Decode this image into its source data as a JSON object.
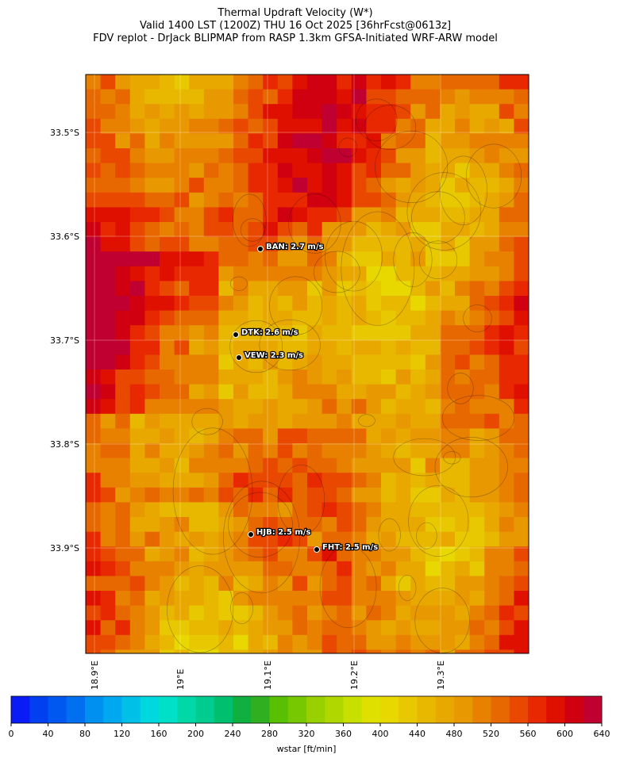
{
  "header": {
    "title": "Thermal Updraft Velocity (W*)",
    "subtitle": "Valid 1400 LST (1200Z) THU 16 Oct 2025 [36hrFcst@0613z]",
    "source": "FDV replot - DrJack BLIPMAP from RASP 1.3km GFSA-Initiated WRF-ARW model"
  },
  "map": {
    "lat_labels": [
      "33.5°S",
      "33.6°S",
      "33.7°S",
      "33.8°S",
      "33.9°S"
    ],
    "lon_labels": [
      "18.9°E",
      "19°E",
      "19.1°E",
      "19.2°E",
      "19.3°E"
    ],
    "stations": [
      {
        "label": "BAN: 2.7 m/s"
      },
      {
        "label": "DTK: 2.6 m/s"
      },
      {
        "label": "VEW: 2.3 m/s"
      },
      {
        "label": "HJB: 2.5 m/s"
      },
      {
        "label": "FHT: 2.5 m/s"
      }
    ]
  },
  "colorbar": {
    "label": "wstar [ft/min]",
    "lim": [
      0,
      640
    ],
    "ticks": [
      0,
      40,
      80,
      120,
      160,
      200,
      240,
      280,
      320,
      360,
      400,
      440,
      480,
      520,
      560,
      600,
      640
    ],
    "colors": [
      "#0a1cf5",
      "#0040f0",
      "#0058f0",
      "#0070f0",
      "#0090f0",
      "#00a8f0",
      "#00c0e8",
      "#00d8e0",
      "#00e0c8",
      "#00d8a8",
      "#00cc90",
      "#00c070",
      "#10b040",
      "#30b020",
      "#58c000",
      "#78c800",
      "#98d000",
      "#b0d800",
      "#c8e000",
      "#e0e000",
      "#e8d800",
      "#e8c800",
      "#e8b800",
      "#e8a800",
      "#e89800",
      "#e88000",
      "#e86800",
      "#e84800",
      "#e82800",
      "#e01000",
      "#d00010",
      "#c00030"
    ]
  }
}
